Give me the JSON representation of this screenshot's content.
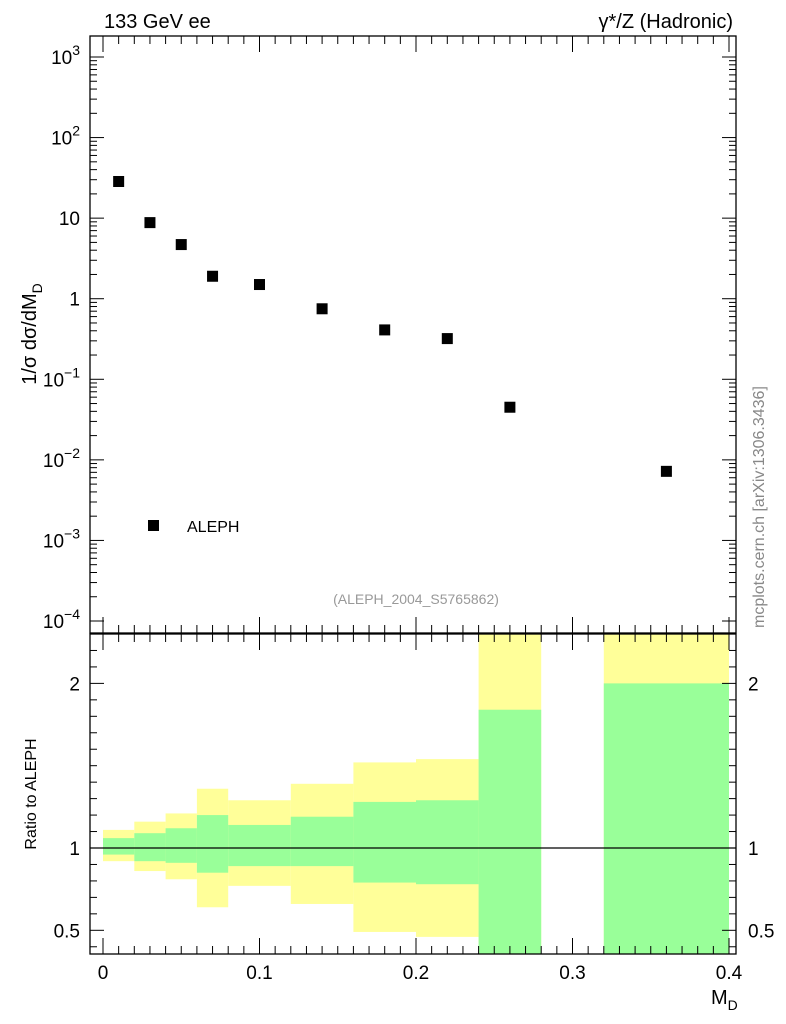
{
  "header": {
    "left_label": "133 GeV ee",
    "right_label": "γ*/Z (Hadronic)"
  },
  "watermark": "mcplots.cern.ch [arXiv:1306.3436]",
  "chart_data": [
    {
      "type": "scatter",
      "name": "main-distribution",
      "ylabel": "1/σ dσ/dM_D",
      "yscale": "log",
      "xlim": [
        0,
        0.4
      ],
      "ylim": [
        0.0001,
        1500
      ],
      "y_ticks": [
        {
          "value": 0.0001,
          "label": "10",
          "sup": "−4"
        },
        {
          "value": 0.001,
          "label": "10",
          "sup": "−3"
        },
        {
          "value": 0.01,
          "label": "10",
          "sup": "−2"
        },
        {
          "value": 0.1,
          "label": "10",
          "sup": "−1"
        },
        {
          "value": 1,
          "label": "1",
          "sup": ""
        },
        {
          "value": 10,
          "label": "10",
          "sup": ""
        },
        {
          "value": 100,
          "label": "10",
          "sup": "2"
        },
        {
          "value": 1000,
          "label": "10",
          "sup": "3"
        }
      ],
      "series": [
        {
          "name": "ALEPH",
          "marker": "square",
          "color": "#000000",
          "x": [
            0.01,
            0.03,
            0.05,
            0.07,
            0.1,
            0.14,
            0.18,
            0.22,
            0.26,
            0.36
          ],
          "y": [
            28.5,
            8.8,
            4.7,
            1.9,
            1.5,
            0.75,
            0.41,
            0.32,
            0.045,
            0.0072
          ]
        }
      ],
      "legend": {
        "entry": "ALEPH",
        "position": "bottom-left"
      },
      "annotation": "(ALEPH_2004_S5765862)"
    },
    {
      "type": "area",
      "name": "ratio-panel",
      "ylabel": "Ratio to ALEPH",
      "xlabel": "M_D",
      "xlim": [
        0,
        0.4
      ],
      "ylim": [
        0.35,
        2.3
      ],
      "x_ticks": [
        {
          "value": 0,
          "label": "0"
        },
        {
          "value": 0.1,
          "label": "0.1"
        },
        {
          "value": 0.2,
          "label": "0.2"
        },
        {
          "value": 0.3,
          "label": "0.3"
        },
        {
          "value": 0.4,
          "label": "0.4"
        }
      ],
      "y_ticks": [
        {
          "value": 0.5,
          "label": "0.5"
        },
        {
          "value": 1,
          "label": "1"
        },
        {
          "value": 2,
          "label": "2"
        }
      ],
      "reference_line": 1,
      "band_colors": {
        "inner": "#99ff99",
        "outer": "#ffff99"
      },
      "bins": [
        {
          "lo": 0.0,
          "hi": 0.02,
          "inner": [
            0.96,
            1.06
          ],
          "outer": [
            0.92,
            1.11
          ]
        },
        {
          "lo": 0.02,
          "hi": 0.04,
          "inner": [
            0.92,
            1.09
          ],
          "outer": [
            0.86,
            1.16
          ]
        },
        {
          "lo": 0.04,
          "hi": 0.06,
          "inner": [
            0.91,
            1.12
          ],
          "outer": [
            0.81,
            1.21
          ]
        },
        {
          "lo": 0.06,
          "hi": 0.08,
          "inner": [
            0.85,
            1.2
          ],
          "outer": [
            0.64,
            1.36
          ]
        },
        {
          "lo": 0.08,
          "hi": 0.12,
          "inner": [
            0.89,
            1.14
          ],
          "outer": [
            0.77,
            1.29
          ]
        },
        {
          "lo": 0.12,
          "hi": 0.16,
          "inner": [
            0.89,
            1.19
          ],
          "outer": [
            0.66,
            1.39
          ]
        },
        {
          "lo": 0.16,
          "hi": 0.2,
          "inner": [
            0.79,
            1.28
          ],
          "outer": [
            0.49,
            1.52
          ]
        },
        {
          "lo": 0.2,
          "hi": 0.24,
          "inner": [
            0.78,
            1.29
          ],
          "outer": [
            0.46,
            1.54
          ]
        },
        {
          "lo": 0.24,
          "hi": 0.28,
          "inner": [
            0.35,
            1.84
          ],
          "outer": [
            0.35,
            2.3
          ]
        },
        {
          "lo": 0.32,
          "hi": 0.4,
          "inner": [
            0.35,
            2.0
          ],
          "outer": [
            0.35,
            2.3
          ]
        }
      ]
    }
  ]
}
